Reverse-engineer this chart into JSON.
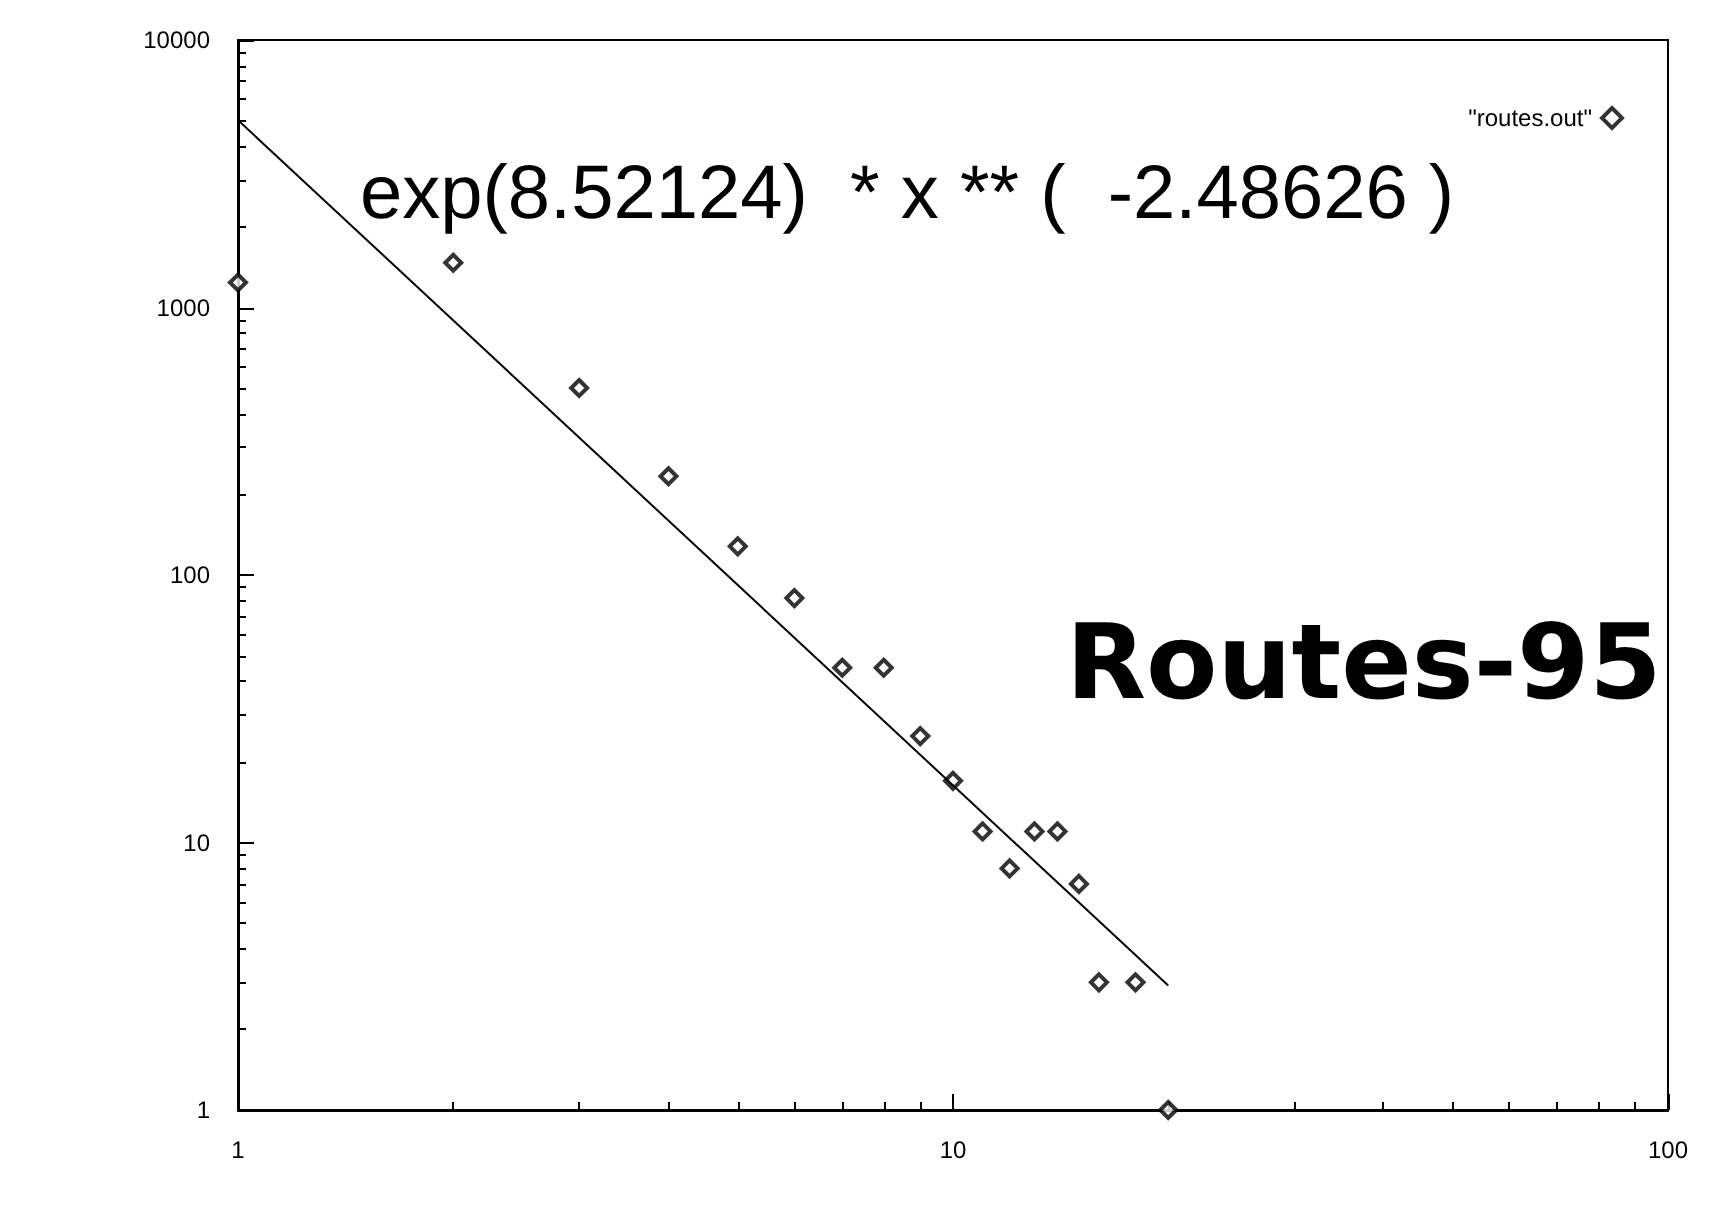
{
  "chart_data": {
    "type": "scatter",
    "log": "xy",
    "grid": false,
    "legend": "top right",
    "marker": "diamond",
    "xlim": [
      1,
      100
    ],
    "xticks": [
      1,
      10,
      100
    ],
    "ylim": [
      1,
      10000
    ],
    "yticks": [
      1,
      10,
      100,
      1000,
      10000
    ],
    "annotations": [
      "exp(8.52124)  * x ** (  -2.48626 )",
      "Routes-95"
    ],
    "series": [
      {
        "name": "\"routes.out\"",
        "color": "#000000",
        "x": [
          1,
          2,
          3,
          4,
          5,
          6,
          7,
          8,
          9,
          10,
          11,
          12,
          13,
          14,
          15,
          16,
          18,
          20
        ],
        "values": [
          1240,
          1470,
          500,
          234,
          128,
          82,
          45,
          45,
          25,
          17,
          11,
          8,
          11,
          11,
          7,
          3,
          3,
          1
        ]
      },
      {
        "type": "line",
        "marker": "none",
        "color": "#000000",
        "line_style": "solid",
        "x": [
          1,
          20
        ],
        "values": [
          5017,
          2.92
        ]
      }
    ]
  }
}
